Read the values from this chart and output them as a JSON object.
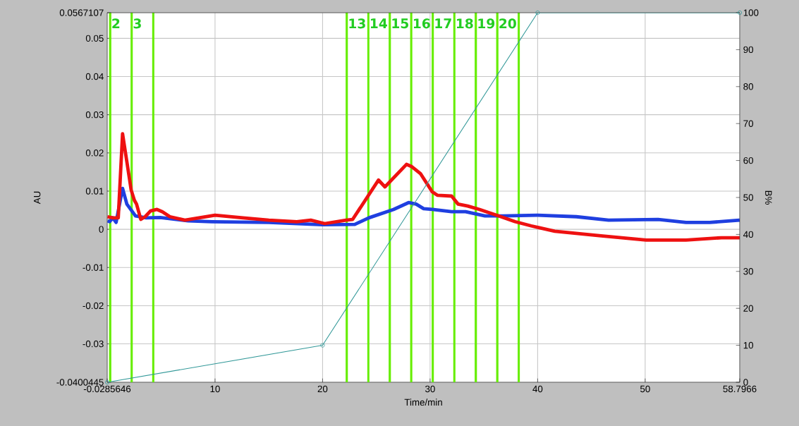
{
  "chart_data": {
    "type": "line",
    "xlabel": "Time/min",
    "ylabel": "AU",
    "y2label": "B%",
    "xlim": [
      -0.0285646,
      58.7966
    ],
    "xticks": [
      -0.0285646,
      10,
      20,
      30,
      40,
      50,
      58.7966
    ],
    "ylim": [
      -0.0400445,
      0.0567107
    ],
    "yticks": [
      -0.0400445,
      -0.03,
      -0.02,
      -0.01,
      0,
      0.01,
      0.02,
      0.03,
      0.04,
      0.05,
      0.0567107
    ],
    "y2lim": [
      0,
      100
    ],
    "y2ticks": [
      0,
      10,
      20,
      30,
      40,
      50,
      60,
      70,
      80,
      90,
      100
    ],
    "grid": true,
    "series": [
      {
        "color": "#339999",
        "axis": "y2",
        "marker": "circle",
        "x": [
          -0.0285646,
          20,
          40,
          58.7966
        ],
        "values": [
          0,
          10,
          100,
          100
        ]
      },
      {
        "color": "#1f3fe0",
        "x": [
          0,
          0.2,
          0.5,
          0.8,
          1.4,
          1.8,
          2.6,
          3.6,
          4.9,
          7.5,
          9.7,
          15,
          20,
          23,
          24.3,
          26.6,
          28.0,
          28.7,
          29.4,
          30.2,
          32.0,
          33.3,
          35.1,
          36.8,
          40,
          43.6,
          46.6,
          51.2,
          53.8,
          56.0,
          58.79
        ],
        "values": [
          0.0022,
          0.002,
          0.003,
          0.0018,
          0.0107,
          0.0066,
          0.0035,
          0.003,
          0.0031,
          0.0022,
          0.002,
          0.0018,
          0.0012,
          0.0013,
          0.003,
          0.0052,
          0.007,
          0.0066,
          0.0054,
          0.0052,
          0.0046,
          0.0046,
          0.0035,
          0.0035,
          0.0037,
          0.0033,
          0.0024,
          0.0026,
          0.0018,
          0.0018,
          0.0024
        ]
      },
      {
        "color": "#ee1111",
        "x": [
          0,
          0.5,
          1.0,
          1.4,
          1.8,
          2.2,
          2.5,
          2.7,
          3.1,
          3.5,
          4.0,
          4.6,
          5.1,
          5.8,
          7.2,
          10,
          12.6,
          15,
          17.6,
          18.9,
          20.2,
          22.2,
          22.8,
          25.2,
          25.8,
          27.8,
          28.3,
          29.1,
          30.2,
          30.7,
          32.0,
          32.6,
          33.5,
          34.6,
          36.4,
          37.9,
          39.4,
          41.6,
          45.9,
          50.1,
          53.8,
          57.1,
          58.79
        ],
        "values": [
          0.0033,
          0.003,
          0.003,
          0.025,
          0.0177,
          0.0103,
          0.0076,
          0.0066,
          0.0026,
          0.0033,
          0.0048,
          0.0052,
          0.0046,
          0.0033,
          0.0024,
          0.0037,
          0.003,
          0.0024,
          0.002,
          0.0024,
          0.0015,
          0.0024,
          0.0026,
          0.0129,
          0.0111,
          0.017,
          0.0164,
          0.0146,
          0.0098,
          0.0089,
          0.0087,
          0.0066,
          0.0061,
          0.0052,
          0.0035,
          0.002,
          0.0009,
          -0.0005,
          -0.0017,
          -0.0028,
          -0.0028,
          -0.0022,
          -0.0022
        ]
      }
    ],
    "ref_lines": [
      {
        "axis": "x",
        "value": 0.25,
        "color": "#66ee00"
      },
      {
        "axis": "x",
        "value": 2.25,
        "color": "#66ee00"
      },
      {
        "axis": "x",
        "value": 4.25,
        "color": "#66ee00"
      },
      {
        "axis": "x",
        "value": 22.25,
        "color": "#66ee00"
      },
      {
        "axis": "x",
        "value": 24.25,
        "color": "#66ee00"
      },
      {
        "axis": "x",
        "value": 26.25,
        "color": "#66ee00"
      },
      {
        "axis": "x",
        "value": 28.25,
        "color": "#66ee00"
      },
      {
        "axis": "x",
        "value": 30.25,
        "color": "#66ee00"
      },
      {
        "axis": "x",
        "value": 32.25,
        "color": "#66ee00"
      },
      {
        "axis": "x",
        "value": 34.25,
        "color": "#66ee00"
      },
      {
        "axis": "x",
        "value": 36.25,
        "color": "#66ee00"
      },
      {
        "axis": "x",
        "value": 38.25,
        "color": "#66ee00"
      }
    ],
    "annotations": [
      {
        "text": "2",
        "x": 0.25,
        "y": 0.0567107
      },
      {
        "text": "3",
        "x": 2.25,
        "y": 0.0567107
      },
      {
        "text": "13",
        "x": 22.25,
        "y": 0.0567107
      },
      {
        "text": "14",
        "x": 24.25,
        "y": 0.0567107
      },
      {
        "text": "15",
        "x": 26.25,
        "y": 0.0567107
      },
      {
        "text": "16",
        "x": 28.25,
        "y": 0.0567107
      },
      {
        "text": "17",
        "x": 30.25,
        "y": 0.0567107
      },
      {
        "text": "18",
        "x": 32.25,
        "y": 0.0567107
      },
      {
        "text": "19",
        "x": 34.25,
        "y": 0.0567107
      },
      {
        "text": "20",
        "x": 36.25,
        "y": 0.0567107
      }
    ]
  }
}
